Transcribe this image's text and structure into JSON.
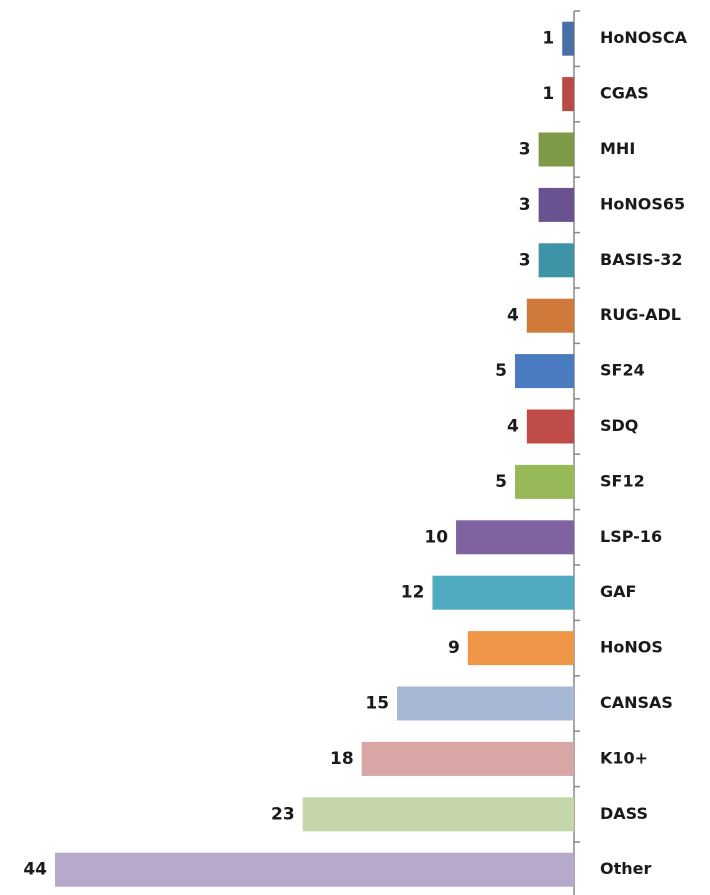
{
  "chart_data": {
    "type": "bar",
    "orientation": "horizontal",
    "categories": [
      "HoNOSCA",
      "CGAS",
      "MHI",
      "HoNOS65",
      "BASIS-32",
      "RUG-ADL",
      "SF24",
      "SDQ",
      "SF12",
      "LSP-16",
      "GAF",
      "HoNOS",
      "CANSAS",
      "K10+",
      "DASS",
      "Other"
    ],
    "values": [
      1,
      1,
      3,
      3,
      3,
      4,
      5,
      4,
      5,
      10,
      12,
      9,
      15,
      18,
      23,
      44
    ],
    "colors": [
      "#4a6fa5",
      "#b94a48",
      "#7d9a48",
      "#6a5290",
      "#3e93a6",
      "#cf7a3a",
      "#4a7bbf",
      "#c04c4a",
      "#98b958",
      "#7e63a0",
      "#4fa9bf",
      "#f09648",
      "#a6b8d6",
      "#d8a6a5",
      "#c5d6a8",
      "#b7a9cc"
    ]
  }
}
